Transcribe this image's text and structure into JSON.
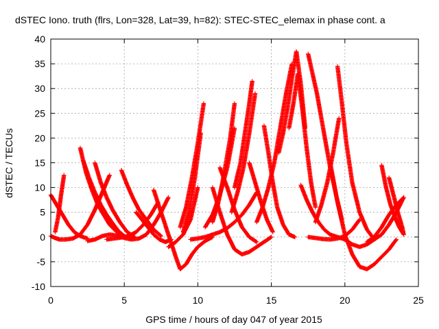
{
  "chart_data": {
    "type": "scatter",
    "title": "dSTEC Iono. truth (flrs, Lon=328, Lat=39, h=82): STEC-STEC_elemax in phase cont. a",
    "xlabel": "GPS time / hours of day 047 of year 2015",
    "ylabel": "dSTEC  / TECUs",
    "xlim": [
      0,
      25
    ],
    "ylim": [
      -10,
      40
    ],
    "xticks": [
      0,
      5,
      10,
      15,
      20,
      25
    ],
    "yticks": [
      -10,
      -5,
      0,
      5,
      10,
      15,
      20,
      25,
      30,
      35,
      40
    ],
    "xtick_labels": [
      "0",
      "5",
      "10",
      "15",
      "20",
      "25"
    ],
    "ytick_labels": [
      "-10",
      "-5",
      "0",
      "5",
      "10",
      "15",
      "20",
      "25",
      "30",
      "35",
      "40"
    ],
    "grid": true,
    "marker": "+",
    "color": "#ff0000",
    "series": [
      {
        "x": [
          0.0,
          0.3,
          0.6,
          1.0,
          1.5,
          2.0,
          2.5,
          3.0,
          3.5,
          4.0
        ],
        "y": [
          0.2,
          -0.2,
          -0.5,
          -0.5,
          -0.3,
          0.5,
          2.5,
          5.5,
          9.0,
          12.5
        ]
      },
      {
        "x": [
          0.0,
          0.3,
          0.6,
          0.9,
          1.2,
          1.6,
          2.0,
          2.5
        ],
        "y": [
          8.5,
          7.0,
          5.5,
          4.0,
          2.5,
          1.0,
          0.2,
          -0.3
        ]
      },
      {
        "x": [
          0.3,
          0.5,
          0.7,
          0.9
        ],
        "y": [
          1.0,
          4.0,
          8.5,
          12.5
        ]
      },
      {
        "x": [
          2.0,
          2.4,
          2.8,
          3.2,
          3.6,
          4.0,
          4.5,
          5.0
        ],
        "y": [
          18.0,
          13.0,
          9.5,
          6.5,
          4.5,
          2.5,
          1.0,
          0.0
        ]
      },
      {
        "x": [
          2.2,
          2.6,
          3.0,
          3.4,
          3.8,
          4.2,
          4.6,
          5.0,
          5.5
        ],
        "y": [
          15.5,
          12.0,
          9.0,
          6.5,
          4.5,
          2.8,
          1.2,
          0.2,
          -0.3
        ]
      },
      {
        "x": [
          3.0,
          3.4,
          3.8,
          4.2,
          4.7,
          5.2,
          5.7
        ],
        "y": [
          15.0,
          11.0,
          8.0,
          5.5,
          3.0,
          1.0,
          0.0
        ]
      },
      {
        "x": [
          4.8,
          5.2,
          5.6,
          6.0,
          6.5,
          7.0,
          7.5
        ],
        "y": [
          13.5,
          10.5,
          7.8,
          5.5,
          3.5,
          1.5,
          0.2
        ]
      },
      {
        "x": [
          2.5,
          3.0,
          3.5,
          4.0,
          4.5,
          5.0,
          5.5,
          6.0,
          6.5,
          7.0,
          7.5,
          8.0
        ],
        "y": [
          -0.8,
          -0.5,
          0.2,
          0.5,
          0.3,
          -0.2,
          -0.5,
          -0.3,
          0.5,
          2.5,
          5.0,
          8.0
        ]
      },
      {
        "x": [
          3.8,
          4.3,
          4.8,
          5.3,
          5.8,
          6.3,
          6.8,
          7.3
        ],
        "y": [
          -0.5,
          -0.3,
          -0.1,
          0.2,
          1.0,
          2.5,
          4.5,
          7.0
        ]
      },
      {
        "x": [
          5.8,
          6.2,
          6.6,
          7.0,
          7.4,
          7.8,
          8.2
        ],
        "y": [
          5.0,
          3.5,
          2.0,
          0.5,
          -0.5,
          -1.0,
          -0.5
        ]
      },
      {
        "x": [
          7.0,
          7.5,
          8.0,
          8.5,
          8.8,
          9.2,
          9.6,
          10.0,
          10.5,
          11.0
        ],
        "y": [
          9.5,
          5.0,
          0.5,
          -4.0,
          -6.5,
          -5.5,
          -3.5,
          -2.0,
          -0.8,
          0.0
        ]
      },
      {
        "x": [
          8.0,
          8.5,
          9.0,
          9.5,
          10.0
        ],
        "y": [
          -2.0,
          -1.0,
          0.5,
          3.5,
          10.0
        ]
      },
      {
        "x": [
          9.0,
          9.4,
          9.8,
          10.2
        ],
        "y": [
          1.0,
          5.0,
          12.0,
          21.0
        ]
      },
      {
        "x": [
          8.8,
          9.2,
          9.6,
          10.0,
          10.4
        ],
        "y": [
          2.0,
          6.0,
          12.0,
          19.0,
          27.0
        ]
      },
      {
        "x": [
          9.5,
          10.0,
          10.5,
          11.0,
          11.5,
          12.0,
          12.5,
          13.0,
          13.5,
          14.0
        ],
        "y": [
          -0.5,
          -0.3,
          0.0,
          0.5,
          1.0,
          1.8,
          3.0,
          4.5,
          6.5,
          9.0
        ]
      },
      {
        "x": [
          10.5,
          11.0,
          11.5,
          12.0,
          12.5
        ],
        "y": [
          2.0,
          4.5,
          8.5,
          14.0,
          22.0
        ]
      },
      {
        "x": [
          11.0,
          11.4,
          11.8,
          12.2,
          12.5
        ],
        "y": [
          3.0,
          7.0,
          13.0,
          20.0,
          27.0
        ]
      },
      {
        "x": [
          11.5,
          12.0,
          12.5,
          13.0,
          13.5,
          14.0
        ],
        "y": [
          14.0,
          10.0,
          5.5,
          2.0,
          0.0,
          -1.0
        ]
      },
      {
        "x": [
          11.0,
          11.5,
          12.0,
          12.5,
          13.0,
          13.5,
          14.0,
          14.5,
          15.0
        ],
        "y": [
          10.0,
          5.0,
          0.5,
          -2.5,
          -3.5,
          -3.0,
          -2.0,
          -1.0,
          0.0
        ]
      },
      {
        "x": [
          12.3,
          12.7,
          13.1,
          13.5,
          13.9
        ],
        "y": [
          5.0,
          9.0,
          14.0,
          21.0,
          29.0
        ]
      },
      {
        "x": [
          12.5,
          12.9,
          13.2,
          13.5,
          13.7
        ],
        "y": [
          10.0,
          15.0,
          21.0,
          27.0,
          31.5
        ]
      },
      {
        "x": [
          13.5,
          13.9,
          14.3,
          14.7,
          15.1
        ],
        "y": [
          15.0,
          11.0,
          7.0,
          3.5,
          1.0
        ]
      },
      {
        "x": [
          14.5,
          14.8,
          15.1,
          15.4,
          15.8,
          16.2,
          16.6
        ],
        "y": [
          22.5,
          17.0,
          11.0,
          6.0,
          2.5,
          0.5,
          0.0
        ]
      },
      {
        "x": [
          14.0,
          14.4,
          14.8,
          15.2,
          15.6,
          16.0,
          16.4
        ],
        "y": [
          3.0,
          6.0,
          10.0,
          15.0,
          22.0,
          29.0,
          35.0
        ]
      },
      {
        "x": [
          15.5,
          15.8,
          16.1,
          16.4,
          16.7,
          17.0,
          17.3
        ],
        "y": [
          17.0,
          21.0,
          26.0,
          32.0,
          37.5,
          31.0,
          22.0
        ]
      },
      {
        "x": [
          16.2,
          16.5,
          16.8,
          17.1,
          17.4,
          17.7,
          18.0
        ],
        "y": [
          22.0,
          27.0,
          33.0,
          26.0,
          18.0,
          11.0,
          6.0
        ]
      },
      {
        "x": [
          17.5,
          17.8,
          18.1,
          18.4,
          18.7,
          19.0,
          19.4,
          19.8
        ],
        "y": [
          37.0,
          33.0,
          29.0,
          24.0,
          19.0,
          14.0,
          8.5,
          3.5
        ]
      },
      {
        "x": [
          17.0,
          17.4,
          17.8,
          18.2,
          18.6,
          19.0,
          19.5,
          20.0
        ],
        "y": [
          10.5,
          7.5,
          5.0,
          3.0,
          1.5,
          0.5,
          0.0,
          -0.5
        ]
      },
      {
        "x": [
          18.0,
          18.4,
          18.8,
          19.2,
          19.6
        ],
        "y": [
          3.0,
          6.5,
          11.0,
          17.0,
          24.0
        ]
      },
      {
        "x": [
          19.0,
          19.5,
          20.0,
          20.5,
          21.0,
          21.5,
          22.0,
          22.5,
          23.0,
          23.5
        ],
        "y": [
          15.0,
          7.0,
          0.5,
          -3.5,
          -6.0,
          -6.5,
          -5.5,
          -4.0,
          -2.5,
          -0.5
        ]
      },
      {
        "x": [
          19.5,
          19.8,
          20.1,
          20.5,
          21.0,
          21.5,
          22.0
        ],
        "y": [
          34.5,
          27.0,
          19.0,
          11.0,
          5.0,
          1.5,
          -0.5
        ]
      },
      {
        "x": [
          20.0,
          20.5,
          21.0,
          21.5,
          22.0,
          22.5,
          23.0,
          23.5,
          24.0
        ],
        "y": [
          -0.5,
          -1.5,
          -2.0,
          -1.5,
          -0.5,
          0.5,
          2.5,
          5.0,
          8.0
        ]
      },
      {
        "x": [
          17.5,
          18.0,
          18.5,
          19.0,
          19.5,
          20.0,
          20.5,
          21.0
        ],
        "y": [
          0.0,
          -0.2,
          -0.4,
          -0.5,
          -0.3,
          0.2,
          1.5,
          3.5
        ]
      },
      {
        "x": [
          22.5,
          22.8,
          23.1,
          23.4,
          23.7,
          24.0
        ],
        "y": [
          14.5,
          10.0,
          6.5,
          4.0,
          2.0,
          0.5
        ]
      },
      {
        "x": [
          23.0,
          23.3,
          23.6,
          23.9,
          24.0
        ],
        "y": [
          12.0,
          8.5,
          5.0,
          2.0,
          0.5
        ]
      },
      {
        "x": [
          21.5,
          22.0,
          22.5,
          23.0,
          23.5,
          24.0
        ],
        "y": [
          -1.0,
          0.0,
          2.0,
          4.5,
          6.5,
          8.0
        ]
      }
    ]
  }
}
